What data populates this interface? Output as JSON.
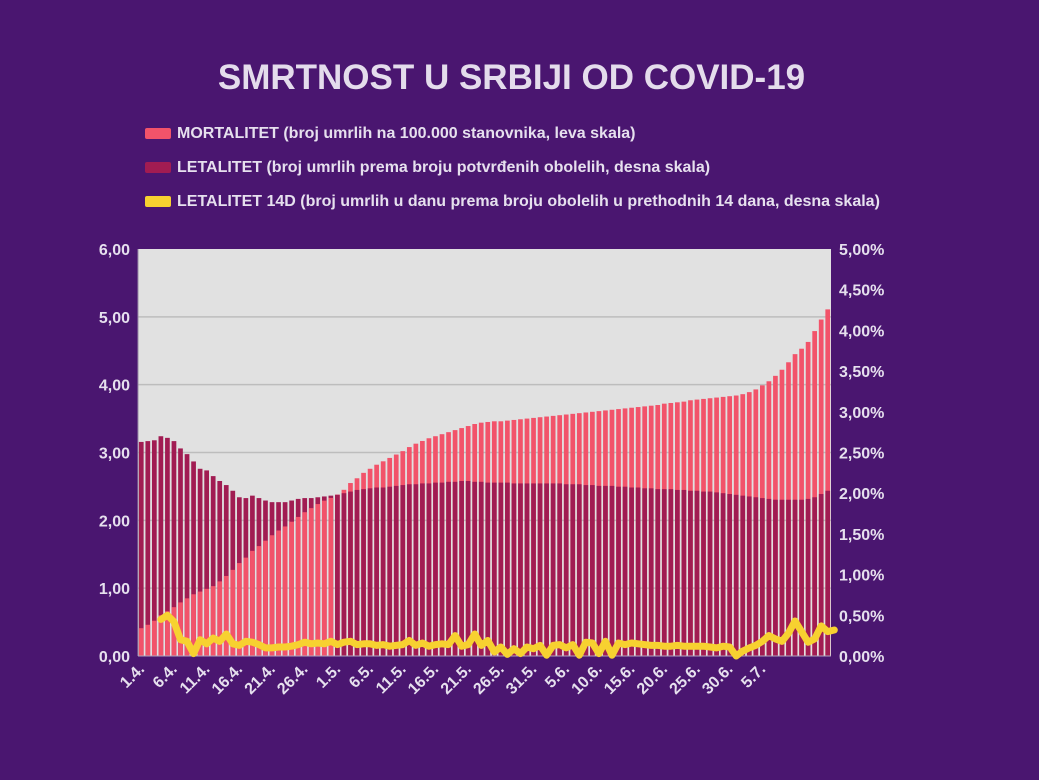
{
  "title": "SMRTNOST U SRBIJI OD COVID-19",
  "legend": [
    {
      "label": "MORTALITET (broj umrlih na 100.000 stanovnika, leva skala)",
      "color": "#f2536a"
    },
    {
      "label": "LETALITET (broj umrlih prema broju potvrđenih obolelih, desna skala)",
      "color": "#a11c52"
    },
    {
      "label": "LETALITET 14D (broj umrlih u danu prema broju obolelih u prethodnih 14 dana, desna skala)",
      "color": "#f7d130"
    }
  ],
  "chart_data": {
    "type": "bar",
    "title": "SMRTNOST U SRBIJI OD COVID-19",
    "x_tick_labels": [
      "1.4.",
      "6.4.",
      "11.4.",
      "16.4.",
      "21.4.",
      "26.4.",
      "1.5.",
      "6.5.",
      "11.5.",
      "16.5.",
      "21.5.",
      "26.5.",
      "31.5.",
      "5.6.",
      "10.6.",
      "15.6.",
      "20.6.",
      "25.6.",
      "30.6.",
      "5.7."
    ],
    "y_left": {
      "lim": [
        0,
        6
      ],
      "ticks": [
        "0,00",
        "1,00",
        "2,00",
        "3,00",
        "4,00",
        "5,00",
        "6,00"
      ]
    },
    "y_right": {
      "lim": [
        0,
        5
      ],
      "ticks": [
        "0,00%",
        "0,50%",
        "1,00%",
        "1,50%",
        "2,00%",
        "2,50%",
        "3,00%",
        "3,50%",
        "4,00%",
        "4,50%",
        "5,00%"
      ]
    },
    "grid": true,
    "plot_background": "#e1e1e1",
    "series": [
      {
        "name": "MORTALITET (broj umrlih na 100.000 stanovnika, leva skala)",
        "kind": "bar",
        "axis": "left",
        "color": "#f2536a",
        "values": [
          0.41,
          0.46,
          0.52,
          0.6,
          0.66,
          0.72,
          0.79,
          0.85,
          0.91,
          0.95,
          0.99,
          1.03,
          1.1,
          1.18,
          1.27,
          1.37,
          1.45,
          1.55,
          1.62,
          1.7,
          1.78,
          1.85,
          1.91,
          1.98,
          2.05,
          2.12,
          2.18,
          2.24,
          2.29,
          2.33,
          2.38,
          2.45,
          2.55,
          2.62,
          2.7,
          2.76,
          2.82,
          2.87,
          2.92,
          2.97,
          3.02,
          3.08,
          3.13,
          3.17,
          3.21,
          3.24,
          3.27,
          3.3,
          3.33,
          3.36,
          3.39,
          3.42,
          3.44,
          3.45,
          3.46,
          3.46,
          3.47,
          3.48,
          3.49,
          3.5,
          3.51,
          3.52,
          3.53,
          3.54,
          3.55,
          3.56,
          3.57,
          3.58,
          3.59,
          3.6,
          3.61,
          3.62,
          3.63,
          3.64,
          3.65,
          3.66,
          3.67,
          3.68,
          3.69,
          3.7,
          3.72,
          3.73,
          3.74,
          3.75,
          3.77,
          3.78,
          3.79,
          3.8,
          3.81,
          3.82,
          3.83,
          3.84,
          3.86,
          3.89,
          3.93,
          3.99,
          4.05,
          4.13,
          4.22,
          4.33,
          4.45,
          4.53,
          4.63,
          4.79,
          4.96,
          5.11
        ]
      },
      {
        "name": "LETALITET (broj umrlih prema broju potvrđenih obolelih, desna skala)",
        "kind": "bar",
        "axis": "right",
        "color": "#a11c52",
        "values": [
          2.63,
          2.64,
          2.65,
          2.7,
          2.68,
          2.64,
          2.55,
          2.48,
          2.39,
          2.3,
          2.28,
          2.21,
          2.15,
          2.1,
          2.03,
          1.95,
          1.94,
          1.97,
          1.94,
          1.91,
          1.89,
          1.89,
          1.89,
          1.91,
          1.93,
          1.94,
          1.94,
          1.95,
          1.96,
          1.97,
          1.98,
          2.0,
          2.02,
          2.04,
          2.05,
          2.06,
          2.07,
          2.07,
          2.08,
          2.09,
          2.1,
          2.11,
          2.11,
          2.12,
          2.12,
          2.13,
          2.13,
          2.14,
          2.14,
          2.15,
          2.15,
          2.14,
          2.14,
          2.13,
          2.13,
          2.13,
          2.13,
          2.12,
          2.12,
          2.12,
          2.12,
          2.12,
          2.12,
          2.12,
          2.12,
          2.11,
          2.11,
          2.11,
          2.1,
          2.1,
          2.09,
          2.09,
          2.09,
          2.08,
          2.08,
          2.07,
          2.07,
          2.06,
          2.06,
          2.05,
          2.05,
          2.05,
          2.04,
          2.04,
          2.03,
          2.03,
          2.02,
          2.02,
          2.01,
          2.0,
          1.99,
          1.98,
          1.97,
          1.96,
          1.95,
          1.94,
          1.93,
          1.92,
          1.92,
          1.92,
          1.92,
          1.92,
          1.93,
          1.95,
          1.99,
          2.03
        ]
      },
      {
        "name": "LETALITET 14D (broj umrlih u danu prema broju obolelih u prethodnih 14 dana, desna skala)",
        "kind": "line",
        "axis": "right",
        "color": "#f7d130",
        "start_index": 3,
        "values": [
          0.45,
          0.5,
          0.42,
          0.2,
          0.18,
          0.03,
          0.2,
          0.15,
          0.22,
          0.18,
          0.27,
          0.15,
          0.13,
          0.18,
          0.17,
          0.14,
          0.1,
          0.1,
          0.11,
          0.11,
          0.12,
          0.14,
          0.17,
          0.15,
          0.16,
          0.15,
          0.18,
          0.14,
          0.17,
          0.18,
          0.14,
          0.15,
          0.15,
          0.13,
          0.14,
          0.12,
          0.13,
          0.14,
          0.19,
          0.13,
          0.16,
          0.12,
          0.14,
          0.15,
          0.14,
          0.25,
          0.12,
          0.14,
          0.27,
          0.13,
          0.19,
          0.05,
          0.11,
          0.02,
          0.09,
          0.03,
          0.11,
          0.09,
          0.13,
          0.01,
          0.13,
          0.14,
          0.1,
          0.14,
          0.01,
          0.17,
          0.16,
          0.03,
          0.18,
          0.01,
          0.16,
          0.14,
          0.16,
          0.15,
          0.14,
          0.13,
          0.13,
          0.12,
          0.12,
          0.13,
          0.12,
          0.12,
          0.12,
          0.12,
          0.11,
          0.1,
          0.12,
          0.11,
          0.0,
          0.06,
          0.1,
          0.13,
          0.18,
          0.25,
          0.21,
          0.18,
          0.28,
          0.43,
          0.3,
          0.17,
          0.21,
          0.37,
          0.3,
          0.32
        ]
      }
    ]
  }
}
